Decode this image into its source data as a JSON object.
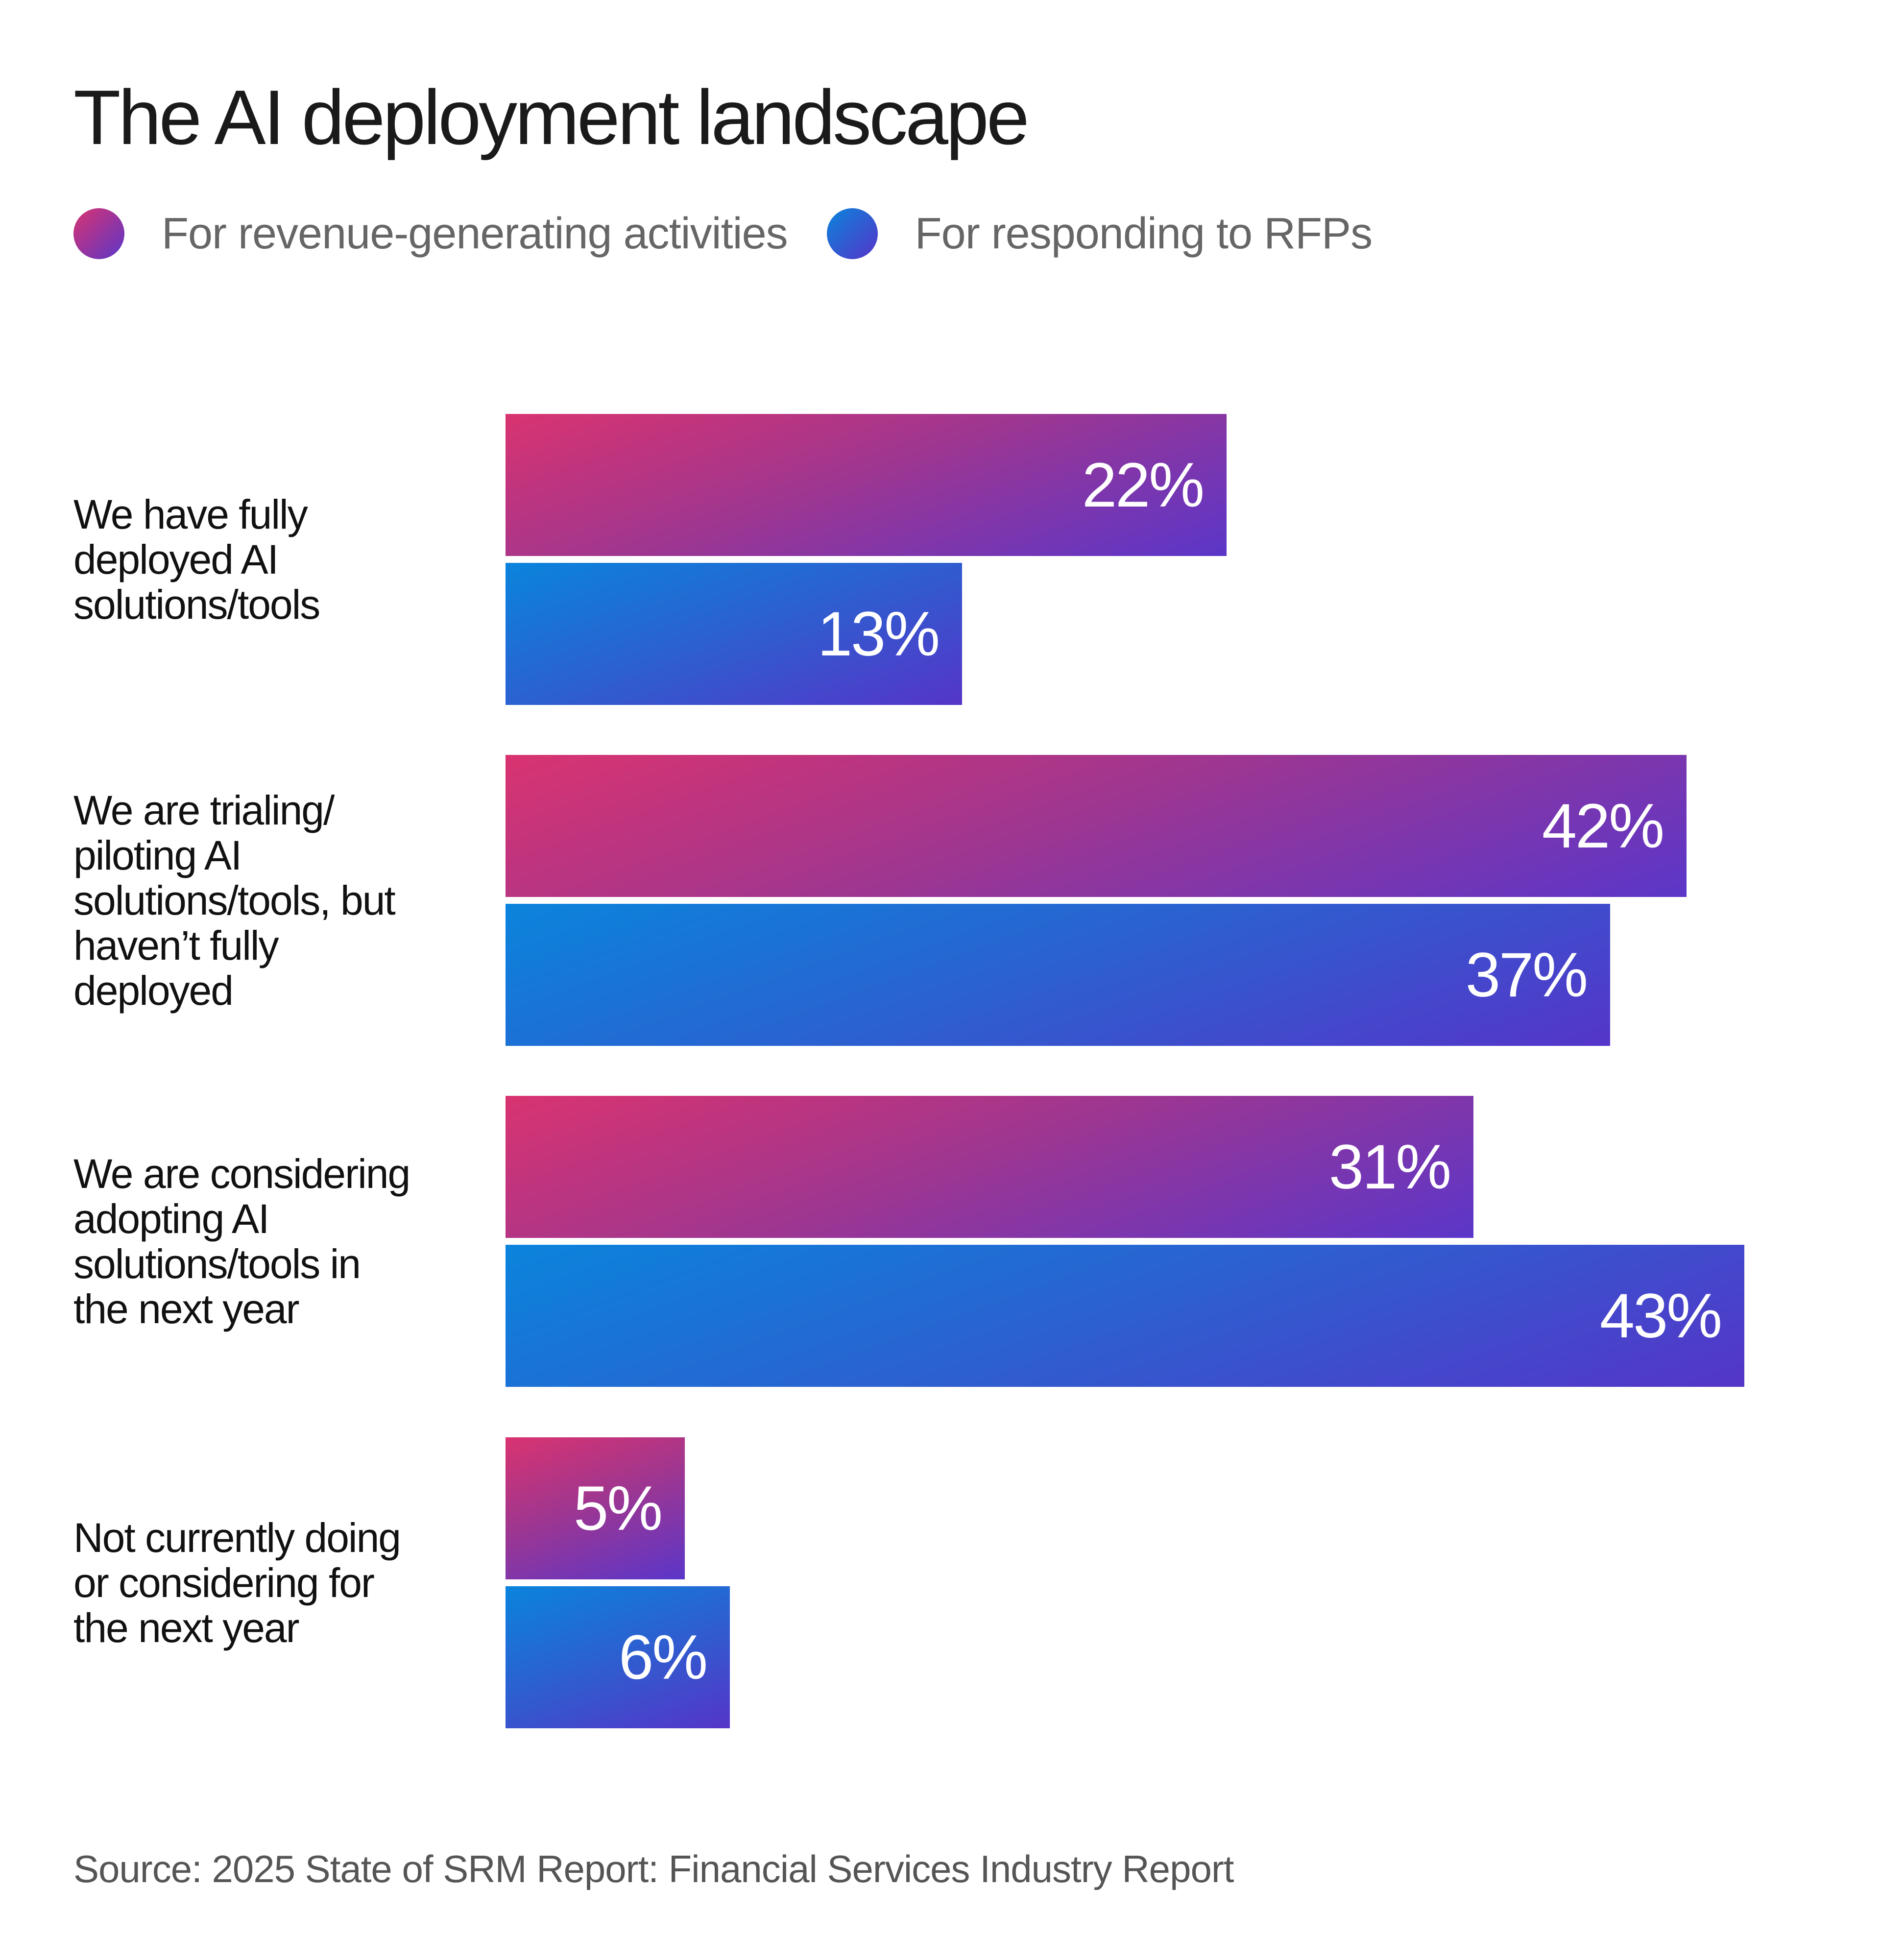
{
  "chart_data": {
    "type": "bar",
    "orientation": "horizontal",
    "title": "The AI deployment landscape",
    "categories": [
      "We have fully deployed AI solutions/tools",
      "We are trialing/ piloting AI solutions/tools, but haven’t fully deployed",
      "We are considering adopting AI solutions/tools in the next year",
      "Not currently doing or considering for the next year"
    ],
    "series": [
      {
        "name": "For revenue-generating activities",
        "values": [
          22,
          42,
          31,
          5
        ],
        "labels": [
          "22%",
          "42%",
          "31%",
          "5%"
        ],
        "color": "#d93370"
      },
      {
        "name": "For responding to RFPs",
        "values": [
          13,
          37,
          43,
          6
        ],
        "labels": [
          "13%",
          "37%",
          "43%",
          "6%"
        ],
        "color": "#0a84dc"
      }
    ],
    "legend": "top-left",
    "grid": false,
    "xlabel": "",
    "ylabel": "",
    "source": "Source: 2025 State of SRM Report: Financial Services Industry Report"
  }
}
